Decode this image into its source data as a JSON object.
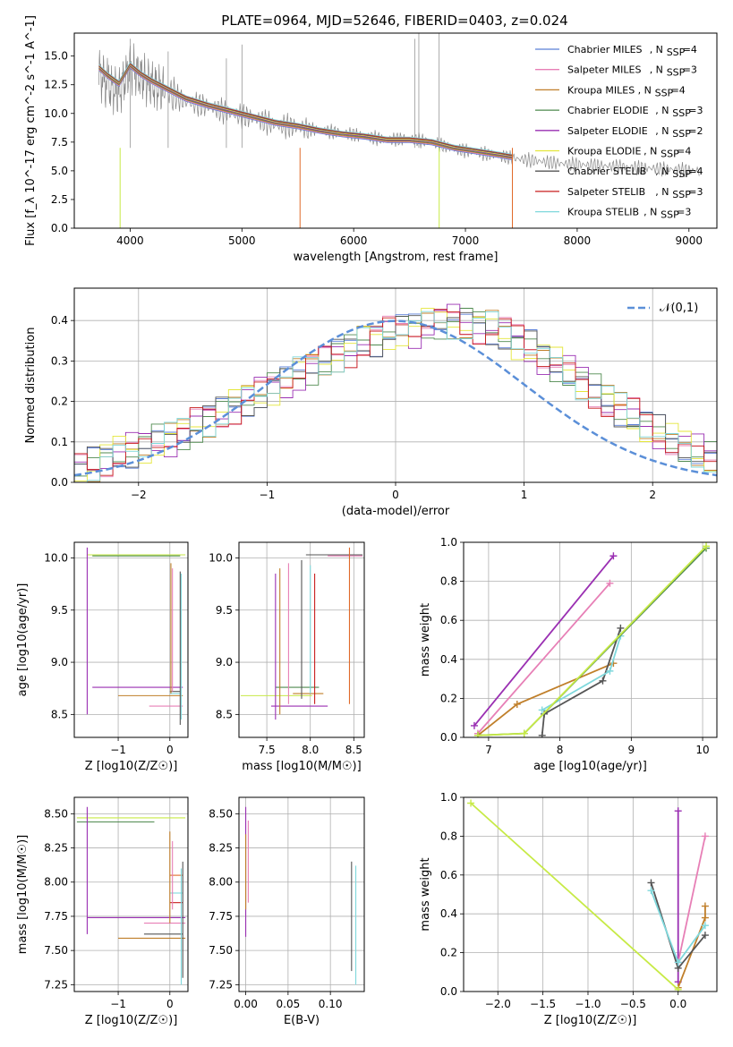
{
  "figure": {
    "title": "PLATE=0964, MJD=52646, FIBERID=0403, z=0.024"
  },
  "legend_models": [
    {
      "name": "Chabrier MILES",
      "nssp": "4",
      "color": "#5b7fd8"
    },
    {
      "name": "Salpeter MILES",
      "nssp": "3",
      "color": "#e77fb6"
    },
    {
      "name": "Kroupa MILES",
      "nssp": "4",
      "color": "#c07f2a"
    },
    {
      "name": "Chabrier ELODIE",
      "nssp": "3",
      "color": "#4f8a4f"
    },
    {
      "name": "Salpeter ELODIE",
      "nssp": "2",
      "color": "#9a2fb2"
    },
    {
      "name": "Kroupa ELODIE",
      "nssp": "4",
      "color": "#e4e63a"
    },
    {
      "name": "Chabrier STELIB",
      "nssp": "4",
      "color": "#555555"
    },
    {
      "name": "Salpeter STELIB",
      "nssp": "3",
      "color": "#c81e1e"
    },
    {
      "name": "Kroupa STELIB",
      "nssp": "3",
      "color": "#7fd8dc"
    }
  ],
  "chart_data": [
    {
      "id": "spectrum",
      "type": "line",
      "xlabel": "wavelength [Angstrom, rest frame]",
      "ylabel": "Flux [f_λ 10^-17 erg cm^-2 s^-1 A^-1]",
      "xlim": [
        3500,
        9250
      ],
      "ylim": [
        0,
        17
      ],
      "xticks": [
        "4000",
        "5000",
        "6000",
        "7000",
        "8000",
        "9000"
      ],
      "yticks": [
        "0.0",
        "2.5",
        "5.0",
        "7.5",
        "10.0",
        "12.5",
        "15.0"
      ],
      "data_color": "#888888",
      "data_x": [
        3720,
        3800,
        3900,
        4000,
        4100,
        4200,
        4300,
        4500,
        4700,
        4900,
        5100,
        5300,
        5500,
        5700,
        5900,
        6100,
        6300,
        6500,
        6700,
        6900,
        7100,
        7300,
        7500,
        7700,
        7900,
        8100,
        8300,
        8500,
        8700,
        8900,
        9100
      ],
      "data_y": [
        13.5,
        12.4,
        11.8,
        14.0,
        13.2,
        12.5,
        12.0,
        11.0,
        10.6,
        10.0,
        9.6,
        9.0,
        8.8,
        8.5,
        8.3,
        8.0,
        7.7,
        7.8,
        7.5,
        6.9,
        6.6,
        6.3,
        6.0,
        5.8,
        5.6,
        5.5,
        5.4,
        5.3,
        5.2,
        5.1,
        5.0
      ],
      "model_x": [
        3720,
        3800,
        3900,
        4000,
        4100,
        4200,
        4300,
        4500,
        4700,
        4900,
        5100,
        5300,
        5500,
        5700,
        5900,
        6100,
        6300,
        6500,
        6700,
        6900,
        7100,
        7300,
        7420
      ],
      "model_y": [
        14.0,
        13.3,
        12.6,
        14.2,
        13.4,
        12.8,
        12.3,
        11.3,
        10.7,
        10.2,
        9.7,
        9.2,
        8.9,
        8.5,
        8.2,
        8.0,
        7.7,
        7.7,
        7.5,
        7.0,
        6.7,
        6.4,
        6.2
      ]
    },
    {
      "id": "residuals",
      "type": "line",
      "xlabel": "(data-model)/error",
      "ylabel": "Normed distribution",
      "xlim": [
        -2.5,
        2.5
      ],
      "ylim": [
        0,
        0.48
      ],
      "xticks": [
        "−2",
        "−1",
        "0",
        "1",
        "2"
      ],
      "yticks": [
        "0.0",
        "0.1",
        "0.2",
        "0.3",
        "0.4"
      ],
      "legend": "𝒩(0,1)",
      "bin_width": 0.1,
      "bin_start": -2.5,
      "histogram": [
        0.03,
        0.04,
        0.06,
        0.07,
        0.08,
        0.09,
        0.1,
        0.11,
        0.12,
        0.14,
        0.16,
        0.17,
        0.19,
        0.21,
        0.22,
        0.24,
        0.25,
        0.27,
        0.29,
        0.3,
        0.32,
        0.33,
        0.35,
        0.36,
        0.37,
        0.38,
        0.38,
        0.39,
        0.4,
        0.4,
        0.39,
        0.39,
        0.38,
        0.37,
        0.35,
        0.33,
        0.31,
        0.29,
        0.27,
        0.25,
        0.22,
        0.2,
        0.18,
        0.16,
        0.14,
        0.12,
        0.1,
        0.09,
        0.07,
        0.06
      ]
    },
    {
      "id": "age-vs-Z",
      "type": "scatter",
      "xlabel": "Z [log10(Z/Z☉)]",
      "ylabel": "age  [log10(age/yr)]",
      "xlim": [
        -1.85,
        0.35
      ],
      "ylim": [
        8.28,
        10.15
      ],
      "xticks": [
        "−1",
        "0"
      ],
      "yticks": [
        "8.5",
        "9.0",
        "9.5",
        "10.0"
      ]
    },
    {
      "id": "age-vs-mass",
      "type": "scatter",
      "xlabel": "mass [log10(M/M☉)]",
      "ylabel": "",
      "xlim": [
        7.18,
        8.62
      ],
      "ylim": [
        8.28,
        10.15
      ],
      "xticks": [
        "7.5",
        "8.0",
        "8.5"
      ],
      "yticks": [
        "8.5",
        "9.0",
        "9.5",
        "10.0"
      ]
    },
    {
      "id": "weight-vs-age",
      "type": "line",
      "xlabel": "age  [log10(age/yr)]",
      "ylabel": "mass weight",
      "xlim": [
        6.65,
        10.2
      ],
      "ylim": [
        0,
        1
      ],
      "xticks": [
        "7",
        "8",
        "9",
        "10"
      ],
      "yticks": [
        "0.0",
        "0.2",
        "0.4",
        "0.6",
        "0.8",
        "1.0"
      ],
      "series": [
        {
          "color": "#9a2fb2",
          "x": [
            6.8,
            8.75
          ],
          "y": [
            0.06,
            0.93
          ]
        },
        {
          "color": "#e77fb6",
          "x": [
            6.85,
            8.7
          ],
          "y": [
            0.02,
            0.79
          ]
        },
        {
          "color": "#c07f2a",
          "x": [
            6.85,
            7.4,
            8.75
          ],
          "y": [
            0.01,
            0.17,
            0.38
          ]
        },
        {
          "color": "#555555",
          "x": [
            7.75,
            7.78,
            8.6,
            8.85
          ],
          "y": [
            0.01,
            0.12,
            0.29,
            0.56
          ]
        },
        {
          "color": "#7fd8dc",
          "x": [
            7.75,
            8.7,
            8.85
          ],
          "y": [
            0.14,
            0.34,
            0.52
          ]
        },
        {
          "color": "#4f8a4f",
          "x": [
            6.85,
            7.5,
            10.05
          ],
          "y": [
            0.01,
            0.02,
            0.97
          ]
        },
        {
          "color": "#c7ea46",
          "x": [
            6.85,
            7.5,
            10.05
          ],
          "y": [
            0.01,
            0.02,
            0.98
          ]
        }
      ]
    },
    {
      "id": "mass-vs-Z",
      "type": "scatter",
      "xlabel": "Z [log10(Z/Z☉)]",
      "ylabel": "mass [log10(M/M☉)]",
      "xlim": [
        -1.85,
        0.35
      ],
      "ylim": [
        7.2,
        8.62
      ],
      "xticks": [
        "−1",
        "0"
      ],
      "yticks": [
        "7.25",
        "7.50",
        "7.75",
        "8.00",
        "8.25",
        "8.50"
      ]
    },
    {
      "id": "mass-vs-ebv",
      "type": "scatter",
      "xlabel": "E(B-V)",
      "ylabel": "",
      "xlim": [
        -0.008,
        0.14
      ],
      "ylim": [
        7.2,
        8.62
      ],
      "xticks": [
        "0.00",
        "0.05",
        "0.10"
      ],
      "yticks": [
        "7.25",
        "7.50",
        "7.75",
        "8.00",
        "8.25",
        "8.50"
      ]
    },
    {
      "id": "weight-vs-Z",
      "type": "line",
      "xlabel": "Z [log10(Z/Z☉)]",
      "ylabel": "mass weight",
      "xlim": [
        -2.38,
        0.43
      ],
      "ylim": [
        0,
        1
      ],
      "xticks": [
        "−2.0",
        "−1.5",
        "−1.0",
        "−0.5",
        "0.0"
      ],
      "yticks": [
        "0.0",
        "0.2",
        "0.4",
        "0.6",
        "0.8",
        "1.0"
      ],
      "series": [
        {
          "color": "#9a2fb2",
          "x": [
            0.0,
            0.0
          ],
          "y": [
            0.05,
            0.93
          ]
        },
        {
          "color": "#e77fb6",
          "x": [
            0.0,
            0.3
          ],
          "y": [
            0.15,
            0.8
          ]
        },
        {
          "color": "#c07f2a",
          "x": [
            0.0,
            0.3,
            0.3
          ],
          "y": [
            0.02,
            0.38,
            0.44
          ]
        },
        {
          "color": "#555555",
          "x": [
            -0.3,
            0.0,
            0.3
          ],
          "y": [
            0.56,
            0.12,
            0.29
          ]
        },
        {
          "color": "#7fd8dc",
          "x": [
            -0.3,
            0.0,
            0.3
          ],
          "y": [
            0.52,
            0.15,
            0.34
          ]
        },
        {
          "color": "#c7ea46",
          "x": [
            -2.3,
            0.0
          ],
          "y": [
            0.97,
            0.01
          ]
        }
      ]
    }
  ]
}
